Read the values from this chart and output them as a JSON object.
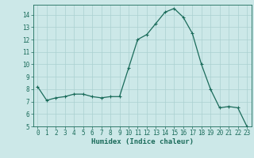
{
  "x": [
    0,
    1,
    2,
    3,
    4,
    5,
    6,
    7,
    8,
    9,
    10,
    11,
    12,
    13,
    14,
    15,
    16,
    17,
    18,
    19,
    20,
    21,
    22,
    23
  ],
  "y": [
    8.2,
    7.1,
    7.3,
    7.4,
    7.6,
    7.6,
    7.4,
    7.3,
    7.4,
    7.4,
    9.7,
    12.0,
    12.4,
    13.3,
    14.2,
    14.5,
    13.8,
    12.5,
    10.0,
    8.0,
    6.5,
    6.6,
    6.5,
    5.0
  ],
  "line_color": "#1a6b5a",
  "marker": "+",
  "markersize": 3,
  "linewidth": 0.9,
  "bg_color": "#cce8e8",
  "grid_color": "#aad0d0",
  "xlabel": "Humidex (Indice chaleur)",
  "xlim": [
    -0.5,
    23.5
  ],
  "ylim": [
    5,
    14.8
  ],
  "yticks": [
    5,
    6,
    7,
    8,
    9,
    10,
    11,
    12,
    13,
    14
  ],
  "xticks": [
    0,
    1,
    2,
    3,
    4,
    5,
    6,
    7,
    8,
    9,
    10,
    11,
    12,
    13,
    14,
    15,
    16,
    17,
    18,
    19,
    20,
    21,
    22,
    23
  ],
  "tick_fontsize": 5.5,
  "label_fontsize": 6.5
}
